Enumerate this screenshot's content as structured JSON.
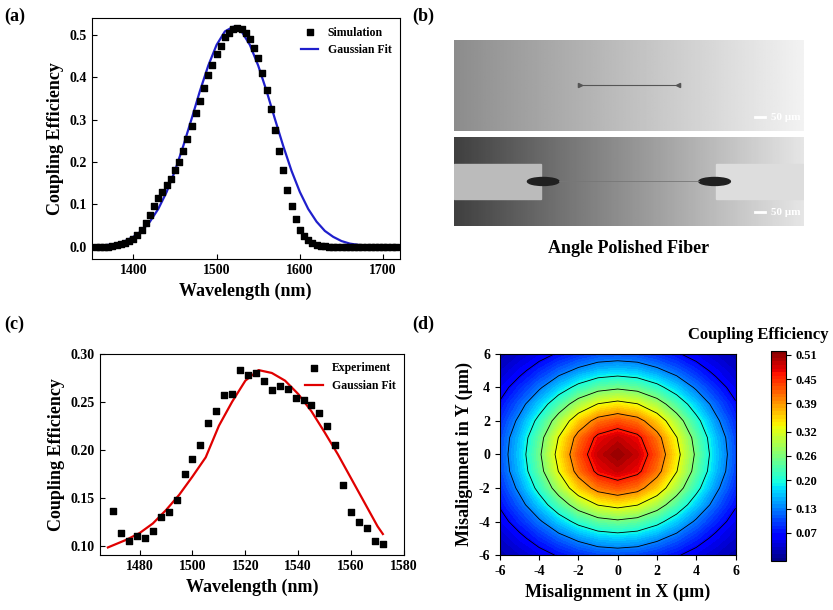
{
  "chart_data": [
    {
      "panel": "(a)",
      "type": "line",
      "x_label": "Wavelength (nm)",
      "y_label": "Coupling Efficiency",
      "xlim": [
        1350,
        1720
      ],
      "ylim": [
        -0.03,
        0.54
      ],
      "xticks": [
        1400,
        1500,
        1600,
        1700
      ],
      "yticks": [
        0.0,
        0.1,
        0.2,
        0.3,
        0.4,
        0.5
      ],
      "legend": "upper right",
      "series": [
        {
          "name": "Simulation",
          "type": "scatter",
          "marker": "square",
          "color": "#000000",
          "x": [
            1355,
            1360,
            1365,
            1370,
            1375,
            1380,
            1385,
            1390,
            1395,
            1400,
            1405,
            1410,
            1415,
            1420,
            1425,
            1430,
            1435,
            1440,
            1445,
            1450,
            1455,
            1460,
            1465,
            1470,
            1475,
            1480,
            1485,
            1490,
            1495,
            1500,
            1505,
            1510,
            1515,
            1520,
            1525,
            1530,
            1535,
            1540,
            1545,
            1550,
            1555,
            1560,
            1565,
            1570,
            1575,
            1580,
            1585,
            1590,
            1595,
            1600,
            1605,
            1610,
            1615,
            1620,
            1625,
            1630,
            1635,
            1640,
            1645,
            1650,
            1655,
            1660,
            1665,
            1670,
            1675,
            1680,
            1685,
            1690,
            1695,
            1700,
            1705,
            1710,
            1715
          ],
          "values": [
            0,
            0,
            0,
            0,
            0.002,
            0.003,
            0.005,
            0.008,
            0.012,
            0.018,
            0.028,
            0.04,
            0.055,
            0.075,
            0.095,
            0.115,
            0.13,
            0.145,
            0.16,
            0.18,
            0.2,
            0.225,
            0.255,
            0.285,
            0.315,
            0.345,
            0.375,
            0.405,
            0.43,
            0.455,
            0.475,
            0.495,
            0.505,
            0.515,
            0.517,
            0.515,
            0.505,
            0.49,
            0.47,
            0.445,
            0.41,
            0.37,
            0.325,
            0.275,
            0.225,
            0.18,
            0.135,
            0.095,
            0.065,
            0.04,
            0.025,
            0.015,
            0.008,
            0.004,
            0.002,
            0.001,
            0,
            0,
            0,
            0,
            0,
            0,
            0,
            0,
            0,
            0,
            0,
            0,
            0,
            0,
            0,
            0,
            0
          ]
        },
        {
          "name": "Gaussian Fit",
          "type": "line",
          "line_style": "solid",
          "color": "#1f1fcc",
          "x": [
            1350,
            1360,
            1370,
            1380,
            1390,
            1400,
            1410,
            1420,
            1430,
            1440,
            1450,
            1460,
            1470,
            1480,
            1490,
            1500,
            1510,
            1520,
            1530,
            1540,
            1550,
            1560,
            1570,
            1580,
            1590,
            1600,
            1610,
            1620,
            1630,
            1640,
            1650,
            1660,
            1670,
            1680,
            1690,
            1700,
            1710,
            1720
          ],
          "values": [
            0.001,
            0.002,
            0.004,
            0.007,
            0.013,
            0.023,
            0.037,
            0.059,
            0.089,
            0.129,
            0.179,
            0.238,
            0.302,
            0.368,
            0.428,
            0.477,
            0.509,
            0.52,
            0.509,
            0.477,
            0.428,
            0.368,
            0.302,
            0.238,
            0.179,
            0.129,
            0.089,
            0.059,
            0.037,
            0.023,
            0.013,
            0.007,
            0.004,
            0.002,
            0.001,
            0,
            0,
            0
          ]
        }
      ]
    },
    {
      "panel": "(b)",
      "type": "image",
      "title": "Angle Polished Fiber",
      "annotations": [
        "50 µm",
        "50 µm"
      ],
      "tick_labels": false
    },
    {
      "panel": "(c)",
      "type": "line",
      "x_label": "Wavelength (nm)",
      "y_label": "Coupling Efficiency",
      "xlim": [
        1465,
        1580
      ],
      "ylim": [
        0.09,
        0.3
      ],
      "xticks": [
        1480,
        1500,
        1520,
        1540,
        1560,
        1580
      ],
      "yticks": [
        {
          "value": 0.1,
          "label": "0.10"
        },
        0.15,
        {
          "value": 0.2,
          "label": "0.20"
        },
        0.25,
        {
          "value": 0.3,
          "label": "0.30"
        }
      ],
      "legend": "upper right",
      "series": [
        {
          "name": "Experiment",
          "type": "scatter",
          "marker": "square",
          "color": "#000000",
          "x": [
            1470,
            1473,
            1476,
            1479,
            1482,
            1485,
            1488,
            1491,
            1494,
            1497,
            1500,
            1503,
            1506,
            1509,
            1512,
            1515,
            1518,
            1521,
            1524,
            1527,
            1530,
            1533,
            1536,
            1539,
            1542,
            1545,
            1548,
            1551,
            1554,
            1557,
            1560,
            1563,
            1566,
            1569,
            1572
          ],
          "values": [
            0.136,
            0.113,
            0.105,
            0.11,
            0.108,
            0.115,
            0.13,
            0.135,
            0.147,
            0.175,
            0.19,
            0.205,
            0.228,
            0.24,
            0.257,
            0.258,
            0.283,
            0.278,
            0.28,
            0.272,
            0.262,
            0.266,
            0.263,
            0.254,
            0.252,
            0.247,
            0.238,
            0.225,
            0.205,
            0.163,
            0.135,
            0.125,
            0.118,
            0.105,
            0.102
          ]
        },
        {
          "name": "Gaussian Fit",
          "type": "line",
          "line_style": "solid",
          "color": "#e00000",
          "x": [
            1468,
            1475,
            1480,
            1485,
            1490,
            1495,
            1500,
            1505,
            1510,
            1515,
            1520,
            1525,
            1530,
            1535,
            1540,
            1545,
            1550,
            1555,
            1560,
            1565,
            1570,
            1572
          ],
          "values": [
            0.098,
            0.106,
            0.113,
            0.123,
            0.137,
            0.153,
            0.172,
            0.192,
            0.225,
            0.25,
            0.272,
            0.283,
            0.28,
            0.272,
            0.258,
            0.24,
            0.218,
            0.195,
            0.17,
            0.145,
            0.12,
            0.112
          ]
        }
      ]
    },
    {
      "panel": "(d)",
      "type": "heatmap",
      "title": "Coupling Efficiency",
      "x_label": "Misalignment in X (µm)",
      "y_label": "Misalignment in Y (µm)",
      "xlim": [
        -6,
        6
      ],
      "ylim": [
        -6,
        6
      ],
      "xticks": [
        -6,
        -4,
        -2,
        0,
        2,
        4,
        6
      ],
      "yticks": [
        -6,
        -4,
        -2,
        0,
        2,
        4,
        6
      ],
      "x": [
        -6,
        -5,
        -4,
        -3,
        -2,
        -1,
        0,
        1,
        2,
        3,
        4,
        5,
        6
      ],
      "y": [
        -6,
        -5,
        -4,
        -3,
        -2,
        -1,
        0,
        1,
        2,
        3,
        4,
        5,
        6
      ],
      "cells": [
        [
          0.021,
          0.034,
          0.05,
          0.069,
          0.086,
          0.099,
          0.103,
          0.099,
          0.086,
          0.069,
          0.05,
          0.034,
          0.021
        ],
        [
          0.034,
          0.055,
          0.083,
          0.113,
          0.14,
          0.161,
          0.168,
          0.161,
          0.14,
          0.113,
          0.083,
          0.055,
          0.034
        ],
        [
          0.05,
          0.083,
          0.123,
          0.168,
          0.21,
          0.24,
          0.251,
          0.24,
          0.21,
          0.168,
          0.123,
          0.083,
          0.05
        ],
        [
          0.069,
          0.113,
          0.168,
          0.229,
          0.286,
          0.327,
          0.342,
          0.327,
          0.286,
          0.229,
          0.168,
          0.113,
          0.069
        ],
        [
          0.086,
          0.14,
          0.21,
          0.286,
          0.358,
          0.408,
          0.427,
          0.408,
          0.358,
          0.286,
          0.21,
          0.14,
          0.086
        ],
        [
          0.099,
          0.161,
          0.24,
          0.327,
          0.408,
          0.467,
          0.488,
          0.467,
          0.408,
          0.327,
          0.24,
          0.161,
          0.099
        ],
        [
          0.103,
          0.168,
          0.251,
          0.342,
          0.427,
          0.488,
          0.51,
          0.488,
          0.427,
          0.342,
          0.251,
          0.168,
          0.103
        ],
        [
          0.099,
          0.161,
          0.24,
          0.327,
          0.408,
          0.467,
          0.488,
          0.467,
          0.408,
          0.327,
          0.24,
          0.161,
          0.099
        ],
        [
          0.086,
          0.14,
          0.21,
          0.286,
          0.358,
          0.408,
          0.427,
          0.408,
          0.358,
          0.286,
          0.21,
          0.14,
          0.086
        ],
        [
          0.069,
          0.113,
          0.168,
          0.229,
          0.286,
          0.327,
          0.342,
          0.327,
          0.286,
          0.229,
          0.168,
          0.113,
          0.069
        ],
        [
          0.05,
          0.083,
          0.123,
          0.168,
          0.21,
          0.24,
          0.251,
          0.24,
          0.21,
          0.168,
          0.123,
          0.083,
          0.05
        ],
        [
          0.034,
          0.055,
          0.083,
          0.113,
          0.14,
          0.161,
          0.168,
          0.161,
          0.14,
          0.113,
          0.083,
          0.055,
          0.034
        ],
        [
          0.021,
          0.034,
          0.05,
          0.069,
          0.086,
          0.099,
          0.103,
          0.099,
          0.086,
          0.069,
          0.05,
          0.034,
          0.021
        ]
      ],
      "colorbar_range": [
        0,
        0.52
      ],
      "colorbar_ticks": [
        0.07,
        0.13,
        {
          "value": 0.2,
          "label": "0.20"
        },
        0.26,
        0.32,
        0.39,
        0.45,
        0.51
      ]
    }
  ]
}
